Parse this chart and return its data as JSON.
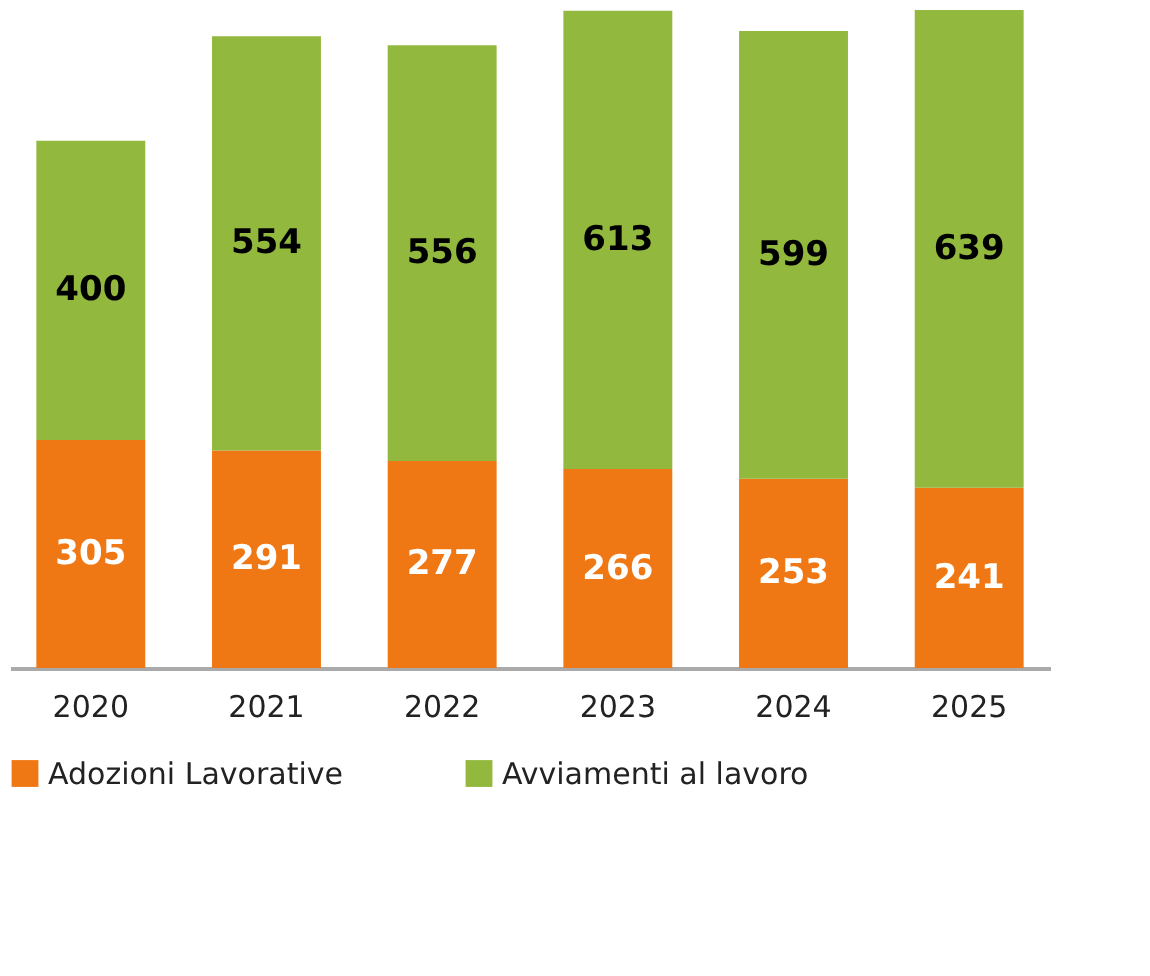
{
  "chart_data": {
    "type": "bar",
    "stacked": true,
    "categories": [
      "2020",
      "2021",
      "2022",
      "2023",
      "2024",
      "2025"
    ],
    "series": [
      {
        "name": "Adozioni Lavorative",
        "color": "#f07814",
        "values": [
          305,
          291,
          277,
          266,
          253,
          241
        ]
      },
      {
        "name": "Avviamenti al lavoro",
        "color": "#92b83e",
        "values": [
          400,
          554,
          556,
          613,
          599,
          639
        ]
      }
    ],
    "ylim": [
      0,
      880
    ],
    "data_labels": true,
    "legend": "bottom",
    "grid": false,
    "tick_labels": "x"
  }
}
